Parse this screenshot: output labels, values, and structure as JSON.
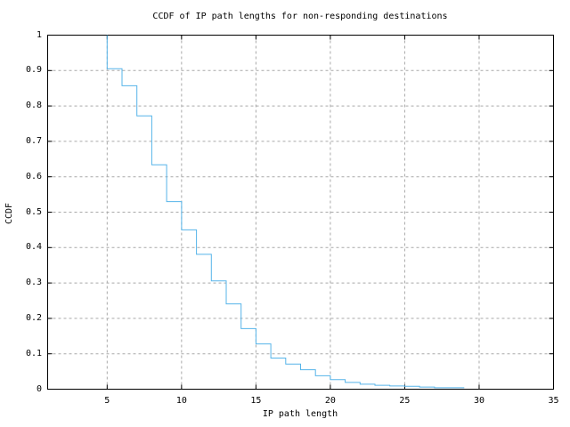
{
  "colors": {
    "line": "#56b4e9",
    "grid": "#a9a9a9",
    "frame": "#000000",
    "background": "#ffffff",
    "text": "#000000"
  },
  "chart_data": {
    "type": "line",
    "subtype": "ccdf-step-function",
    "title": "CCDF of IP path lengths for non-responding destinations",
    "xlabel": "IP path length",
    "ylabel": "CCDF",
    "xlim": [
      1,
      35
    ],
    "ylim": [
      0,
      1
    ],
    "x_ticks": [
      5,
      10,
      15,
      20,
      25,
      30,
      35
    ],
    "y_ticks": [
      0,
      0.1,
      0.2,
      0.3,
      0.4,
      0.5,
      0.6,
      0.7,
      0.8,
      0.9,
      1
    ],
    "y_tick_labels": [
      "0",
      "0.1",
      "0.2",
      "0.3",
      "0.4",
      "0.5",
      "0.6",
      "0.7",
      "0.8",
      "0.9",
      "1"
    ],
    "grid": "dashed",
    "legend": "none",
    "series": [
      {
        "name": "ccdf",
        "color": "#56b4e9",
        "start": {
          "x": 5,
          "y": 1.0
        },
        "end_x": 29,
        "steps": [
          {
            "x": 5,
            "y": 0.905
          },
          {
            "x": 6,
            "y": 0.857
          },
          {
            "x": 7,
            "y": 0.772
          },
          {
            "x": 8,
            "y": 0.634
          },
          {
            "x": 9,
            "y": 0.53
          },
          {
            "x": 10,
            "y": 0.45
          },
          {
            "x": 11,
            "y": 0.381
          },
          {
            "x": 12,
            "y": 0.306
          },
          {
            "x": 13,
            "y": 0.241
          },
          {
            "x": 14,
            "y": 0.171
          },
          {
            "x": 15,
            "y": 0.128
          },
          {
            "x": 16,
            "y": 0.088
          },
          {
            "x": 17,
            "y": 0.071
          },
          {
            "x": 18,
            "y": 0.055
          },
          {
            "x": 19,
            "y": 0.038
          },
          {
            "x": 20,
            "y": 0.027
          },
          {
            "x": 21,
            "y": 0.019
          },
          {
            "x": 22,
            "y": 0.014
          },
          {
            "x": 23,
            "y": 0.011
          },
          {
            "x": 24,
            "y": 0.009
          },
          {
            "x": 25,
            "y": 0.008
          },
          {
            "x": 26,
            "y": 0.006
          },
          {
            "x": 27,
            "y": 0.004
          }
        ]
      }
    ]
  }
}
